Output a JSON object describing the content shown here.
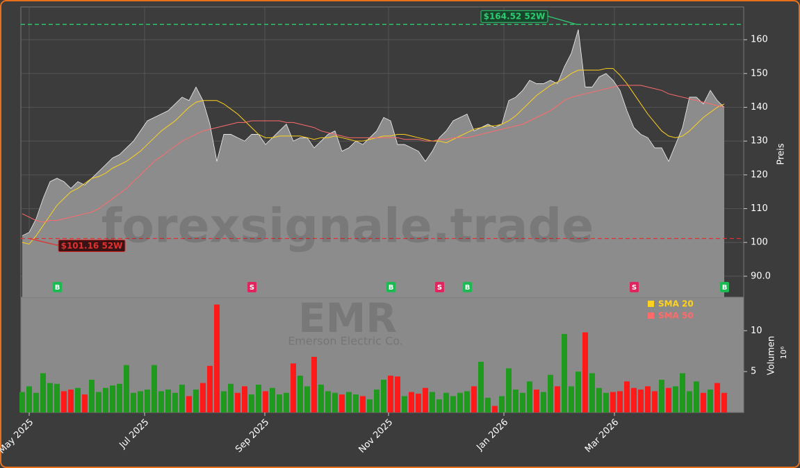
{
  "chart_data": {
    "type": "stock",
    "watermark": "forexsignale.trade",
    "symbol": "EMR",
    "company": "Emerson Electric Co.",
    "y_label": "Preis",
    "y2_label": "Volumen",
    "y2_offset": "10⁶",
    "xlim": [
      -0.2,
      103.8
    ],
    "xticks": [
      {
        "value": 1,
        "label": "May 2025"
      },
      {
        "value": 17.6,
        "label": "Jul 2025"
      },
      {
        "value": 34.9,
        "label": "Sep 2025"
      },
      {
        "value": 52.7,
        "label": "Nov 2025"
      },
      {
        "value": 69.3,
        "label": "Jan 2026"
      },
      {
        "value": 85.2,
        "label": "Mar 2026"
      }
    ],
    "ylim": [
      83.8,
      169.7
    ],
    "yticks": [
      {
        "value": 90,
        "label": "90.0"
      },
      100,
      110,
      120,
      130,
      140,
      150,
      160
    ],
    "y2lim": [
      0,
      14.1
    ],
    "y2ticks": [
      5,
      10
    ],
    "grid": true,
    "close": {
      "color": "#8c8c8c",
      "values": [
        102,
        103,
        107,
        113,
        118,
        119,
        118,
        116,
        118,
        117,
        119,
        121,
        123,
        125,
        126,
        128,
        130,
        133,
        136,
        137,
        138,
        139,
        141,
        143,
        142,
        146,
        142,
        135,
        124,
        132,
        132,
        131,
        130,
        132,
        132,
        129,
        131,
        133,
        135,
        130,
        131,
        131,
        128,
        130,
        132,
        133,
        127,
        128,
        130,
        129,
        131,
        133,
        137,
        136,
        129,
        129,
        128,
        127,
        124,
        127,
        131,
        133,
        136,
        137,
        138,
        133,
        134,
        135,
        134,
        135,
        142,
        143,
        145,
        148,
        147,
        147,
        148,
        147,
        152,
        156,
        163,
        146,
        146,
        149,
        150,
        148,
        145,
        139,
        134,
        132,
        131,
        128,
        128,
        124,
        129,
        134,
        143,
        143,
        141,
        145,
        142,
        140
      ]
    },
    "series": [
      {
        "name": "SMA 20",
        "color": "#ffd21f",
        "values": [
          100,
          99.5,
          102,
          105,
          108,
          111,
          113,
          115,
          116,
          117.5,
          119,
          119.5,
          120.5,
          122,
          123,
          124,
          125.5,
          127,
          129,
          131,
          133,
          134.5,
          136,
          138,
          140,
          141.5,
          142,
          142,
          142,
          141,
          139.5,
          138,
          136,
          134,
          132,
          131,
          131,
          131.5,
          131.5,
          131.5,
          131.5,
          131,
          130.5,
          131,
          131,
          131.5,
          131,
          130.5,
          130,
          130,
          130.5,
          131,
          131.5,
          131.5,
          132,
          132,
          131.5,
          131,
          130.5,
          130,
          130,
          129.5,
          130.5,
          131.5,
          132.5,
          133.5,
          134,
          134.5,
          134.5,
          135,
          136,
          137.5,
          139.5,
          141.5,
          143.5,
          145,
          146.5,
          147.5,
          148.5,
          150,
          151,
          151,
          151,
          151,
          151.5,
          151.5,
          149.5,
          147,
          144,
          141,
          138,
          135.5,
          133,
          131.5,
          131,
          131.5,
          133,
          135,
          137,
          138.5,
          140,
          141
        ]
      },
      {
        "name": "SMA 50",
        "color": "#ff6b6b",
        "values": [
          108.5,
          107.5,
          106.5,
          106,
          106.5,
          106.5,
          107,
          107.5,
          108,
          108.5,
          109,
          110,
          111.5,
          113,
          114.5,
          116,
          118,
          120,
          122,
          124,
          125.5,
          127,
          128.5,
          130,
          131,
          132,
          133,
          133.5,
          134,
          134.5,
          135,
          135.5,
          135.5,
          136,
          136,
          136,
          136,
          136,
          135.5,
          135.5,
          135,
          134.5,
          134,
          133,
          132.5,
          132,
          131.5,
          131,
          131,
          131,
          131,
          131,
          131,
          131,
          131,
          130.5,
          130.5,
          130.5,
          130,
          130,
          130.5,
          130.5,
          131,
          131,
          131,
          131.5,
          132,
          132.5,
          133,
          133.5,
          134,
          134.5,
          135,
          136,
          137,
          138,
          139,
          140.5,
          142,
          143,
          143.5,
          144,
          144.5,
          145,
          145.5,
          146,
          146.5,
          146.5,
          146.5,
          146.5,
          146,
          145.5,
          145,
          144,
          143.5,
          143,
          142.5,
          142,
          141.5,
          141,
          140.5,
          140
        ]
      }
    ],
    "volume": {
      "up_color": "#1f9a1f",
      "down_color": "#ff1a1a",
      "values": [
        2.5,
        3.2,
        2.4,
        4.8,
        3.6,
        3.5,
        2.6,
        2.8,
        3.0,
        2.2,
        4.0,
        2.5,
        3.0,
        3.3,
        3.5,
        5.8,
        2.4,
        2.6,
        2.8,
        5.8,
        2.6,
        2.8,
        2.4,
        3.4,
        2.0,
        2.8,
        3.6,
        5.7,
        13.2,
        2.6,
        3.5,
        2.4,
        3.2,
        2.2,
        3.4,
        2.6,
        3.0,
        2.2,
        2.4,
        6.0,
        4.5,
        3.2,
        6.8,
        3.4,
        2.6,
        2.4,
        2.2,
        2.5,
        2.2,
        2.0,
        1.6,
        2.8,
        4.0,
        4.5,
        4.4,
        2.0,
        2.5,
        2.3,
        3.0,
        2.5,
        1.6,
        2.4,
        2.0,
        2.4,
        2.6,
        3.2,
        6.2,
        1.8,
        0.8,
        2.0,
        5.4,
        2.8,
        2.4,
        3.8,
        2.8,
        2.5,
        4.6,
        3.2,
        9.6,
        3.2,
        5.0,
        9.8,
        4.8,
        3.0,
        2.4,
        2.5,
        2.6,
        3.8,
        3.0,
        2.8,
        3.2,
        2.6,
        4.0,
        3.0,
        3.2,
        4.8,
        2.6,
        3.8,
        2.4,
        2.8,
        3.6,
        2.4
      ]
    },
    "signals": {
      "x": [
        5,
        33,
        53,
        60,
        64,
        88,
        101
      ],
      "labels": [
        "B",
        "S",
        "B",
        "S",
        "B",
        "S",
        "B"
      ],
      "colors": [
        "#1db954",
        "#e0245e",
        "#1db954",
        "#e0245e",
        "#1db954",
        "#e0245e",
        "#1db954"
      ]
    },
    "high_52w": {
      "value": 164.52,
      "label": "$164.52 52W",
      "x": 79.8,
      "color": "#2ecc71"
    },
    "low_52w": {
      "value": 101.16,
      "label": "$101.16 52W",
      "x": 1,
      "color": "#e03030"
    }
  }
}
